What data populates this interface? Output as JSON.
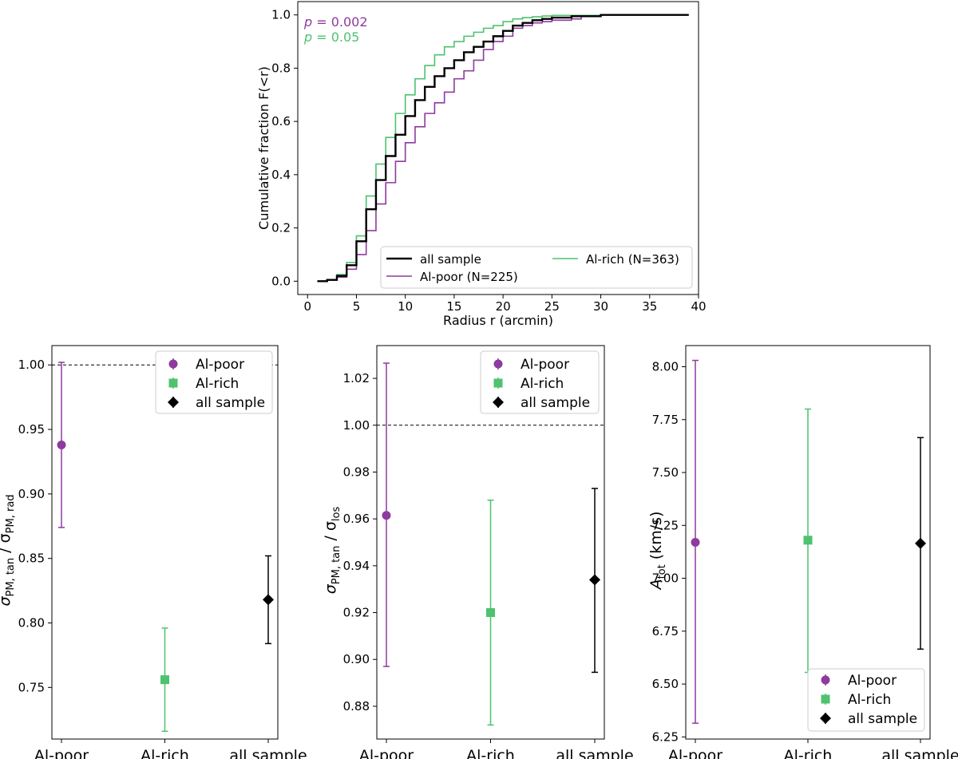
{
  "colors": {
    "al_poor": "#8e3a9e",
    "al_rich": "#4ec26e",
    "all_sample": "#000000"
  },
  "chart_data": [
    {
      "type": "line",
      "panel": "top",
      "xlabel": "Radius  r  (arcmin)",
      "ylabel": "Cumulative fraction  F(<r)",
      "xlim": [
        0,
        40
      ],
      "ylim": [
        0,
        1
      ],
      "xticks": [
        "0",
        "5",
        "10",
        "15",
        "20",
        "25",
        "30",
        "35",
        "40"
      ],
      "yticks": [
        "0.0",
        "0.2",
        "0.4",
        "0.6",
        "0.8",
        "1.0"
      ],
      "annotations": [
        {
          "prefix": "p",
          "text": " = 0.002",
          "color": "#8e3a9e"
        },
        {
          "prefix": "p",
          "text": " = 0.05",
          "color": "#4ec26e"
        }
      ],
      "legend_placement": "lower-right",
      "series": [
        {
          "name": "all sample",
          "color": "#000000",
          "x": [
            1,
            2,
            3,
            4,
            5,
            6,
            7,
            8,
            9,
            10,
            11,
            12,
            13,
            14,
            15,
            16,
            17,
            18,
            19,
            20,
            21,
            22,
            23,
            24,
            25,
            27,
            30,
            39
          ],
          "y": [
            0.0,
            0.005,
            0.02,
            0.06,
            0.15,
            0.27,
            0.38,
            0.47,
            0.55,
            0.62,
            0.68,
            0.73,
            0.77,
            0.8,
            0.83,
            0.86,
            0.88,
            0.9,
            0.92,
            0.94,
            0.96,
            0.97,
            0.98,
            0.985,
            0.99,
            0.995,
            1.0,
            1.0
          ]
        },
        {
          "name": "Al-poor (N=225)",
          "color": "#8e3a9e",
          "x": [
            1,
            2,
            3,
            4,
            5,
            6,
            7,
            8,
            9,
            10,
            11,
            12,
            13,
            14,
            15,
            16,
            17,
            18,
            19,
            20,
            21,
            22,
            23,
            24,
            25,
            27,
            28,
            30,
            39
          ],
          "y": [
            0.0,
            0.004,
            0.015,
            0.045,
            0.1,
            0.19,
            0.29,
            0.37,
            0.45,
            0.52,
            0.58,
            0.63,
            0.67,
            0.71,
            0.76,
            0.79,
            0.83,
            0.87,
            0.9,
            0.92,
            0.95,
            0.96,
            0.97,
            0.975,
            0.98,
            0.985,
            0.995,
            1.0,
            1.0
          ]
        },
        {
          "name": "Al-rich (N=363)",
          "color": "#4ec26e",
          "x": [
            1,
            2,
            3,
            4,
            5,
            6,
            7,
            8,
            9,
            10,
            11,
            12,
            13,
            14,
            15,
            16,
            17,
            18,
            19,
            20,
            21,
            22,
            23,
            24,
            25,
            30,
            39
          ],
          "y": [
            0.0,
            0.006,
            0.025,
            0.07,
            0.17,
            0.32,
            0.44,
            0.54,
            0.63,
            0.7,
            0.76,
            0.81,
            0.85,
            0.88,
            0.9,
            0.92,
            0.935,
            0.95,
            0.96,
            0.975,
            0.985,
            0.99,
            0.993,
            0.996,
            0.998,
            1.0,
            1.0
          ]
        }
      ],
      "legend": [
        {
          "label": "all sample",
          "color": "#000000"
        },
        {
          "label": "Al-poor (N=225)",
          "color": "#8e3a9e"
        },
        {
          "label": "Al-rich (N=363)",
          "color": "#4ec26e"
        }
      ]
    },
    {
      "type": "scatter",
      "panel": "bottom-left",
      "categories": [
        "Al-poor",
        "Al-rich",
        "all sample"
      ],
      "ylabel_main": "σ",
      "ylabel_sub1": "PM, tan",
      "ylabel_mid": " / σ",
      "ylabel_sub2": "PM, rad",
      "ylim": [
        0.71,
        1.015
      ],
      "yticks": [
        0.75,
        0.8,
        0.85,
        0.9,
        0.95,
        1.0
      ],
      "ytick_labels": [
        "0.75",
        "0.80",
        "0.85",
        "0.90",
        "0.95",
        "1.00"
      ],
      "reference_line": 1.0,
      "legend_placement": "top-right",
      "points": [
        {
          "name": "Al-poor",
          "category": "Al-poor",
          "marker": "circle",
          "color": "#8e3a9e",
          "value": 0.938,
          "low": 0.874,
          "high": 1.002
        },
        {
          "name": "Al-rich",
          "category": "Al-rich",
          "marker": "square",
          "color": "#4ec26e",
          "value": 0.756,
          "low": 0.716,
          "high": 0.796
        },
        {
          "name": "all sample",
          "category": "all sample",
          "marker": "diamond",
          "color": "#000000",
          "value": 0.818,
          "low": 0.784,
          "high": 0.852
        }
      ]
    },
    {
      "type": "scatter",
      "panel": "bottom-middle",
      "categories": [
        "Al-poor",
        "Al-rich",
        "all sample"
      ],
      "ylabel_main": "σ",
      "ylabel_sub1": "PM, tan",
      "ylabel_mid": " / σ",
      "ylabel_sub2": "los",
      "ylim": [
        0.866,
        1.034
      ],
      "yticks": [
        0.88,
        0.9,
        0.92,
        0.94,
        0.96,
        0.98,
        1.0,
        1.02
      ],
      "ytick_labels": [
        "0.88",
        "0.90",
        "0.92",
        "0.94",
        "0.96",
        "0.98",
        "1.00",
        "1.02"
      ],
      "reference_line": 1.0,
      "legend_placement": "top-right",
      "points": [
        {
          "name": "Al-poor",
          "category": "Al-poor",
          "marker": "circle",
          "color": "#8e3a9e",
          "value": 0.9615,
          "low": 0.897,
          "high": 1.0265
        },
        {
          "name": "Al-rich",
          "category": "Al-rich",
          "marker": "square",
          "color": "#4ec26e",
          "value": 0.92,
          "low": 0.872,
          "high": 0.968
        },
        {
          "name": "all sample",
          "category": "all sample",
          "marker": "diamond",
          "color": "#000000",
          "value": 0.934,
          "low": 0.8945,
          "high": 0.973
        }
      ]
    },
    {
      "type": "scatter",
      "panel": "bottom-right",
      "categories": [
        "Al-poor",
        "Al-rich",
        "all sample"
      ],
      "ylabel_main": "A",
      "ylabel_sub1": "tot",
      "ylabel_mid": " (km/s)",
      "ylabel_sub2": "",
      "ylim": [
        6.24,
        8.1
      ],
      "yticks": [
        6.25,
        6.5,
        6.75,
        7.0,
        7.25,
        7.5,
        7.75,
        8.0
      ],
      "ytick_labels": [
        "6.25",
        "6.50",
        "6.75",
        "7.00",
        "7.25",
        "7.50",
        "7.75",
        "8.00"
      ],
      "reference_line": null,
      "legend_placement": "lower-right",
      "points": [
        {
          "name": "Al-poor",
          "category": "Al-poor",
          "marker": "circle",
          "color": "#8e3a9e",
          "value": 7.17,
          "low": 6.315,
          "high": 8.03
        },
        {
          "name": "Al-rich",
          "category": "Al-rich",
          "marker": "square",
          "color": "#4ec26e",
          "value": 7.18,
          "low": 6.555,
          "high": 7.8
        },
        {
          "name": "all sample",
          "category": "all sample",
          "marker": "diamond",
          "color": "#000000",
          "value": 7.165,
          "low": 6.665,
          "high": 7.665
        }
      ]
    }
  ]
}
